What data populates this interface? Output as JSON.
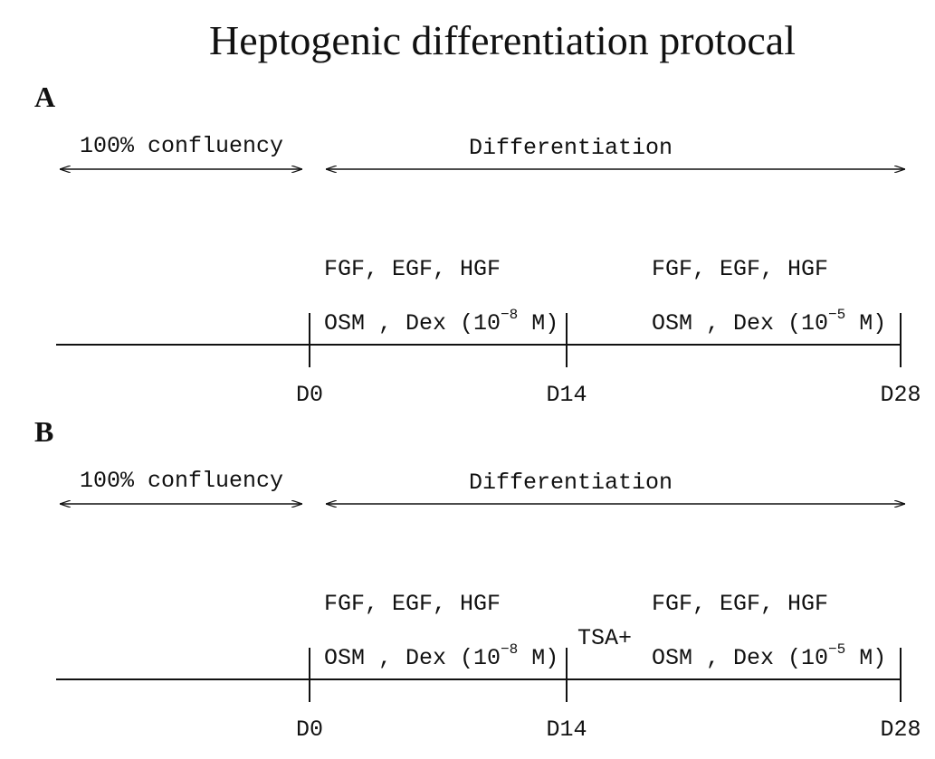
{
  "title": "Heptogenic differentiation protocal",
  "panels": [
    {
      "label": "A",
      "phase1": "100% confluency",
      "phase2": "Differentiation",
      "stage1": {
        "line1": "FGF, EGF, HGF",
        "line2_base": "OSM , Dex (10",
        "line2_exp": "−8",
        "line2_tail": " M)"
      },
      "stage2": {
        "line1": "FGF, EGF, HGF",
        "line2_base": "OSM , Dex (10",
        "line2_exp": "−5",
        "line2_tail": " M)"
      },
      "days": [
        "D0",
        "D14",
        "D28"
      ]
    },
    {
      "label": "B",
      "phase1": "100% confluency",
      "phase2": "Differentiation",
      "stage1": {
        "line1": "FGF, EGF, HGF",
        "line2_base": "OSM , Dex (10",
        "line2_exp": "−8",
        "line2_tail": " M)"
      },
      "treatment": "TSA+",
      "stage2": {
        "line1": "FGF, EGF, HGF",
        "line2_base": "OSM , Dex (10",
        "line2_exp": "−5",
        "line2_tail": " M)"
      },
      "days": [
        "D0",
        "D14",
        "D28"
      ]
    }
  ]
}
